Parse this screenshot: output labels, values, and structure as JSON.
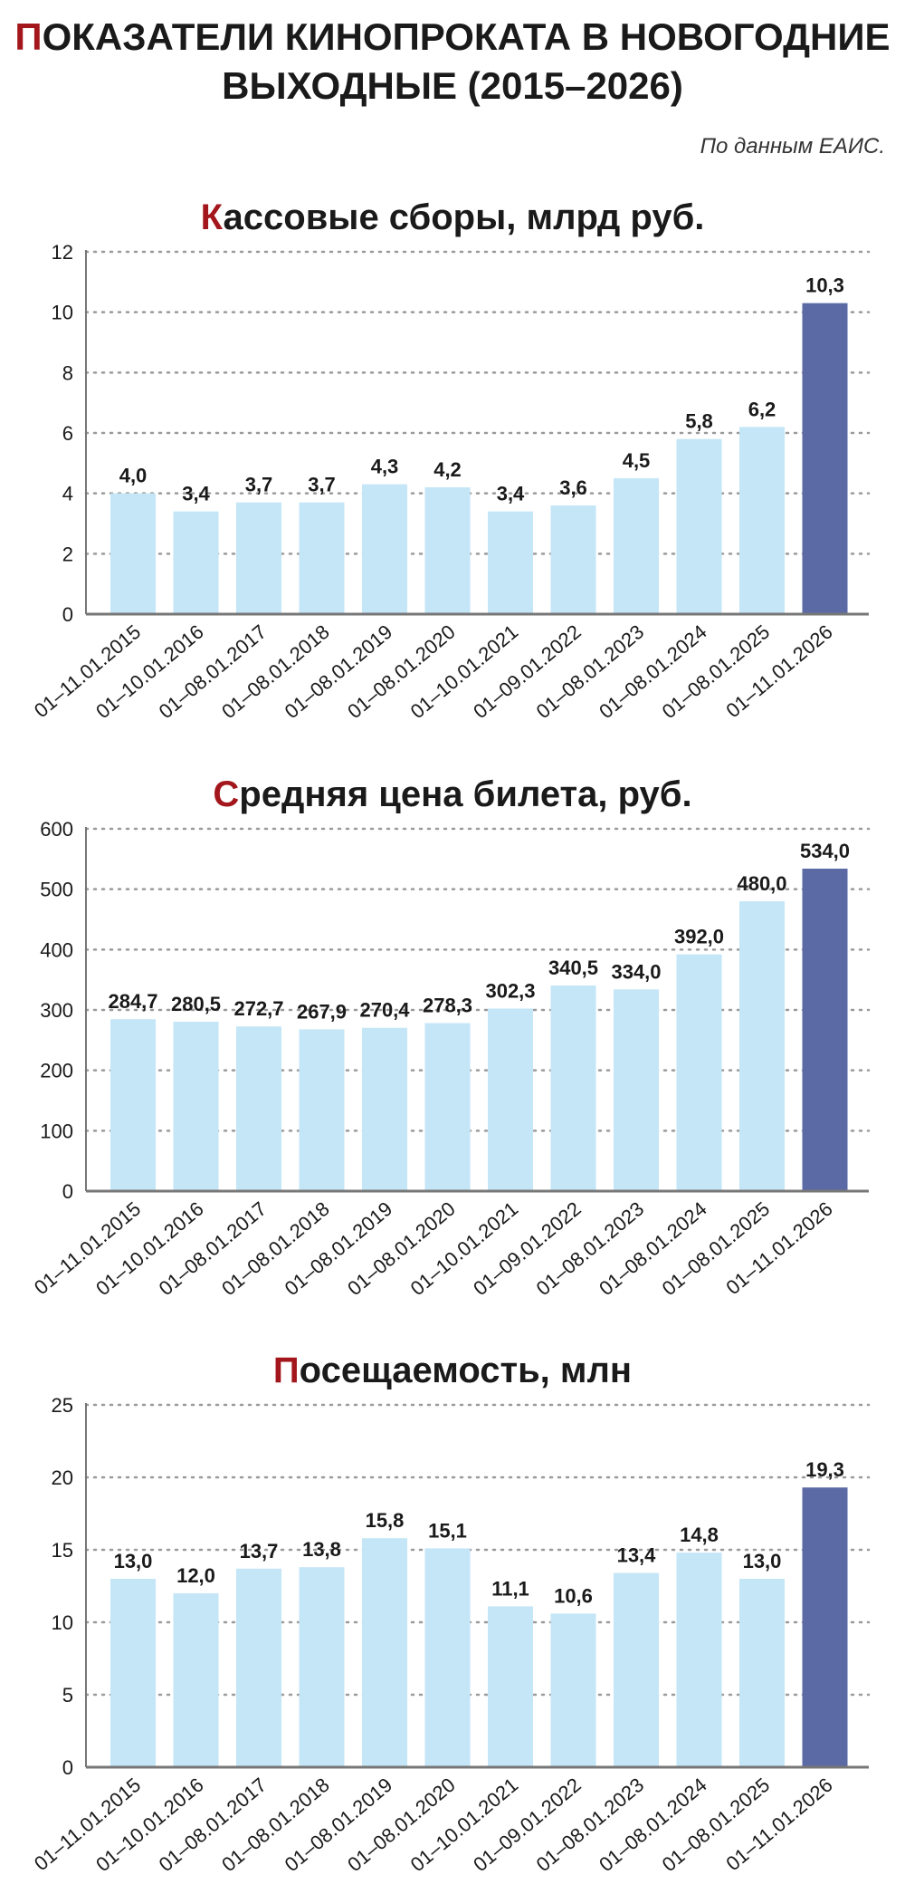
{
  "header": {
    "title_line1_first": "П",
    "title_line1_rest": "ОКАЗАТЕЛИ КИНОПРОКАТА В НОВОГОДНИЕ",
    "title_line2": "ВЫХОДНЫЕ (2015–2026)",
    "source": "По данным ЕАИС."
  },
  "colors": {
    "accent": "#a3171c",
    "bar_light": "#c4e6f7",
    "bar_highlight": "#5b6aa5",
    "grid": "#9a9a9a",
    "axis": "#777777"
  },
  "chart_data": [
    {
      "type": "bar",
      "title_first": "К",
      "title_rest": "ассовые сборы, млрд руб.",
      "categories": [
        "01–11.01.2015",
        "01–10.01.2016",
        "01–08.01.2017",
        "01–08.01.2018",
        "01–08.01.2019",
        "01–08.01.2020",
        "01–10.01.2021",
        "01–09.01.2022",
        "01–08.01.2023",
        "01–08.01.2024",
        "01–08.01.2025",
        "01–11.01.2026"
      ],
      "values": [
        4.0,
        3.4,
        3.7,
        3.7,
        4.3,
        4.2,
        3.4,
        3.6,
        4.5,
        5.8,
        6.2,
        10.3
      ],
      "value_labels": [
        "4,0",
        "3,4",
        "3,7",
        "3,7",
        "4,3",
        "4,2",
        "3,4",
        "3,6",
        "4,5",
        "5,8",
        "6,2",
        "10,3"
      ],
      "yticks": [
        0,
        2,
        4,
        6,
        8,
        10,
        12
      ],
      "ylim": [
        0,
        12
      ],
      "highlight_index": 11,
      "grid": true
    },
    {
      "type": "bar",
      "title_first": "С",
      "title_rest": "редняя цена билета, руб.",
      "categories": [
        "01–11.01.2015",
        "01–10.01.2016",
        "01–08.01.2017",
        "01–08.01.2018",
        "01–08.01.2019",
        "01–08.01.2020",
        "01–10.01.2021",
        "01–09.01.2022",
        "01–08.01.2023",
        "01–08.01.2024",
        "01–08.01.2025",
        "01–11.01.2026"
      ],
      "values": [
        284.7,
        280.5,
        272.7,
        267.9,
        270.4,
        278.3,
        302.3,
        340.5,
        334.0,
        392.0,
        480.0,
        534.0
      ],
      "value_labels": [
        "284,7",
        "280,5",
        "272,7",
        "267,9",
        "270,4",
        "278,3",
        "302,3",
        "340,5",
        "334,0",
        "392,0",
        "480,0",
        "534,0"
      ],
      "yticks": [
        0,
        100,
        200,
        300,
        400,
        500,
        600
      ],
      "ylim": [
        0,
        600
      ],
      "highlight_index": 11,
      "grid": true
    },
    {
      "type": "bar",
      "title_first": "П",
      "title_rest": "осещаемость, млн",
      "categories": [
        "01–11.01.2015",
        "01–10.01.2016",
        "01–08.01.2017",
        "01–08.01.2018",
        "01–08.01.2019",
        "01–08.01.2020",
        "01–10.01.2021",
        "01–09.01.2022",
        "01–08.01.2023",
        "01–08.01.2024",
        "01–08.01.2025",
        "01–11.01.2026"
      ],
      "values": [
        13.0,
        12.0,
        13.7,
        13.8,
        15.8,
        15.1,
        11.1,
        10.6,
        13.4,
        14.8,
        13.0,
        19.3
      ],
      "value_labels": [
        "13,0",
        "12,0",
        "13,7",
        "13,8",
        "15,8",
        "15,1",
        "11,1",
        "10,6",
        "13,4",
        "14,8",
        "13,0",
        "19,3"
      ],
      "yticks": [
        0,
        5,
        10,
        15,
        20,
        25
      ],
      "ylim": [
        0,
        25
      ],
      "highlight_index": 11,
      "grid": true
    }
  ]
}
